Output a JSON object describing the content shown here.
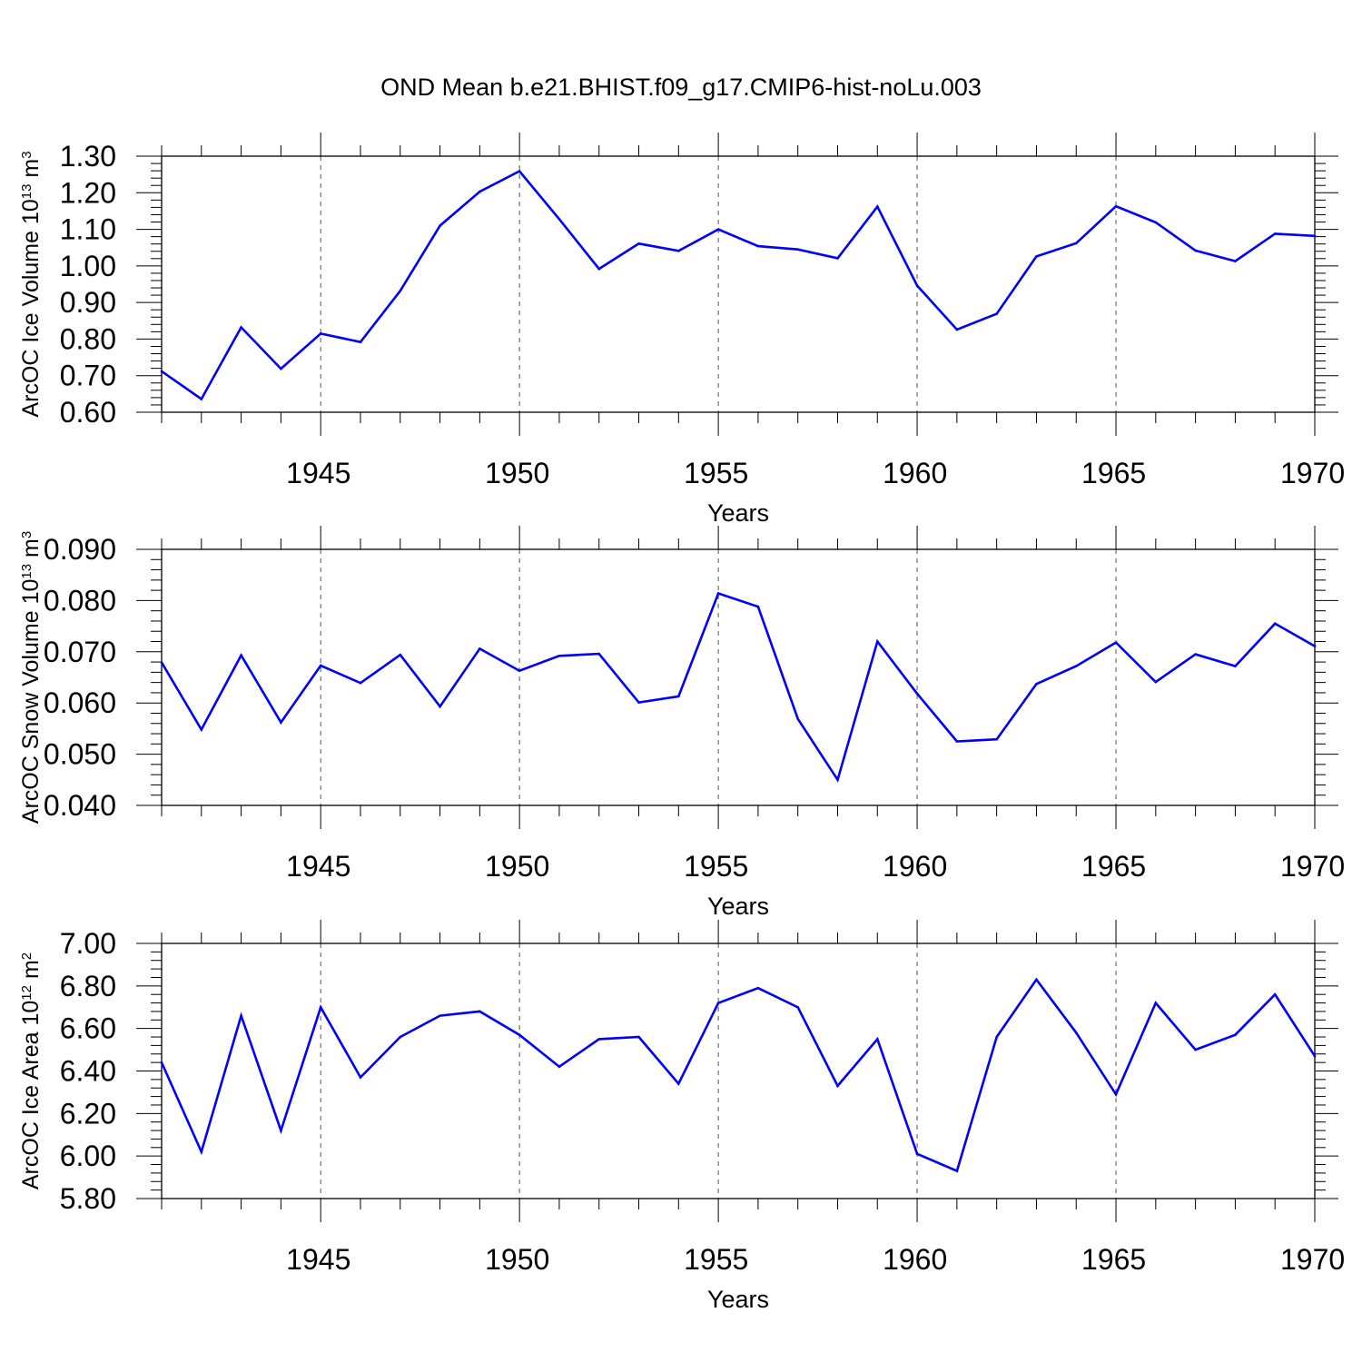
{
  "title": "OND Mean b.e21.BHIST.f09_g17.CMIP6-hist-noLu.003",
  "colors": {
    "series": "#0000ff",
    "axis": "#000000",
    "grid": "#555555"
  },
  "chart_data": [
    {
      "type": "line",
      "ylabel": {
        "text": "ArcOC Ice Volume 10",
        "exp": "13",
        "unit": " m",
        "unit_exp": "3"
      },
      "xlabel": "Years",
      "xlim": [
        1941,
        1970
      ],
      "ylim": [
        0.6,
        1.3
      ],
      "xticks": [
        "1945",
        "1950",
        "1955",
        "1960",
        "1965",
        "1970"
      ],
      "yticks": [
        "0.60",
        "0.70",
        "0.80",
        "0.90",
        "1.00",
        "1.10",
        "1.20",
        "1.30"
      ],
      "grid": "dashed vertical at 5-year ticks",
      "x": [
        1941,
        1942,
        1943,
        1944,
        1945,
        1946,
        1947,
        1948,
        1949,
        1950,
        1951,
        1952,
        1953,
        1954,
        1955,
        1956,
        1957,
        1958,
        1959,
        1960,
        1961,
        1962,
        1963,
        1964,
        1965,
        1966,
        1967,
        1968,
        1969,
        1970
      ],
      "values": [
        0.712,
        0.636,
        0.832,
        0.719,
        0.815,
        0.792,
        0.932,
        1.11,
        1.203,
        1.259,
        1.128,
        0.992,
        1.061,
        1.041,
        1.1,
        1.054,
        1.045,
        1.021,
        1.162,
        0.946,
        0.826,
        0.869,
        1.026,
        1.062,
        1.163,
        1.119,
        1.042,
        1.013,
        1.088,
        1.082
      ]
    },
    {
      "type": "line",
      "ylabel": {
        "text": "ArcOC Snow Volume 10",
        "exp": "13",
        "unit": " m",
        "unit_exp": "3"
      },
      "xlabel": "Years",
      "xlim": [
        1941,
        1970
      ],
      "ylim": [
        0.04,
        0.09
      ],
      "xticks": [
        "1945",
        "1950",
        "1955",
        "1960",
        "1965",
        "1970"
      ],
      "yticks": [
        "0.040",
        "0.050",
        "0.060",
        "0.070",
        "0.080",
        "0.090"
      ],
      "grid": "dashed vertical at 5-year ticks",
      "x": [
        1941,
        1942,
        1943,
        1944,
        1945,
        1946,
        1947,
        1948,
        1949,
        1950,
        1951,
        1952,
        1953,
        1954,
        1955,
        1956,
        1957,
        1958,
        1959,
        1960,
        1961,
        1962,
        1963,
        1964,
        1965,
        1966,
        1967,
        1968,
        1969,
        1970
      ],
      "values": [
        0.0679,
        0.0548,
        0.0693,
        0.0562,
        0.0673,
        0.0639,
        0.0694,
        0.0593,
        0.0706,
        0.0663,
        0.0692,
        0.0696,
        0.0601,
        0.0613,
        0.0814,
        0.0788,
        0.0569,
        0.045,
        0.072,
        0.0618,
        0.0525,
        0.0529,
        0.0637,
        0.0672,
        0.0718,
        0.0641,
        0.0695,
        0.0672,
        0.0755,
        0.0711
      ]
    },
    {
      "type": "line",
      "ylabel": {
        "text": "ArcOC Ice Area 10",
        "exp": "12",
        "unit": " m",
        "unit_exp": "2"
      },
      "xlabel": "Years",
      "xlim": [
        1941,
        1970
      ],
      "ylim": [
        5.8,
        7.0
      ],
      "xticks": [
        "1945",
        "1950",
        "1955",
        "1960",
        "1965",
        "1970"
      ],
      "yticks": [
        "5.80",
        "6.00",
        "6.20",
        "6.40",
        "6.60",
        "6.80",
        "7.00"
      ],
      "grid": "dashed vertical at 5-year ticks",
      "x": [
        1941,
        1942,
        1943,
        1944,
        1945,
        1946,
        1947,
        1948,
        1949,
        1950,
        1951,
        1952,
        1953,
        1954,
        1955,
        1956,
        1957,
        1958,
        1959,
        1960,
        1961,
        1962,
        1963,
        1964,
        1965,
        1966,
        1967,
        1968,
        1969,
        1970
      ],
      "values": [
        6.44,
        6.02,
        6.66,
        6.12,
        6.7,
        6.37,
        6.56,
        6.66,
        6.68,
        6.57,
        6.42,
        6.55,
        6.56,
        6.34,
        6.72,
        6.79,
        6.7,
        6.33,
        6.55,
        6.01,
        5.93,
        6.56,
        6.83,
        6.58,
        6.29,
        6.72,
        6.5,
        6.57,
        6.76,
        6.47
      ]
    }
  ]
}
